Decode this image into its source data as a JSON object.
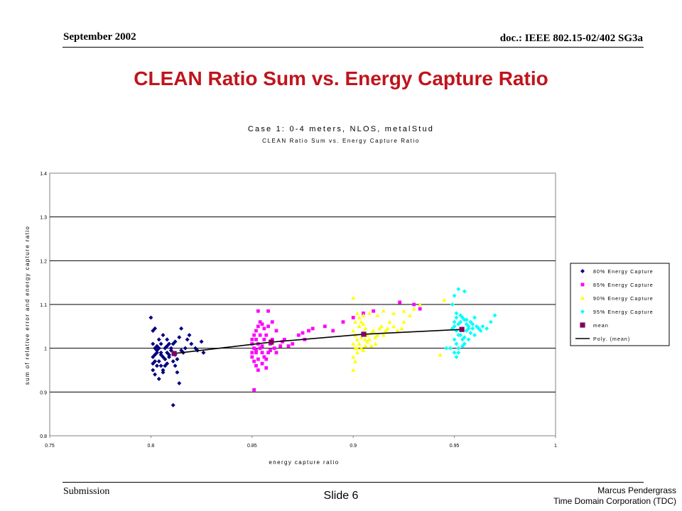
{
  "header": {
    "date": "September 2002",
    "doc": "doc.: IEEE 802.15-02/402 SG3a"
  },
  "slide": {
    "title": "CLEAN Ratio Sum vs. Energy Capture Ratio"
  },
  "footer": {
    "left": "Submission",
    "center": "Slide 6",
    "author": "Marcus Pendergrass",
    "org": "Time Domain Corporation (TDC)"
  },
  "chart_data": {
    "type": "scatter",
    "title": "Case 1: 0-4 meters, NLOS, metalStud",
    "subtitle": "CLEAN Ratio Sum vs. Energy Capture Ratio",
    "xlabel": "energy capture ratio",
    "ylabel": "sum of relative error and energy capture ratio",
    "xlim": [
      0.75,
      1
    ],
    "ylim": [
      0.8,
      1.4
    ],
    "x_ticks": [
      "0.75",
      "0.8",
      "0.85",
      "0.9",
      "0.95",
      "1"
    ],
    "y_ticks": [
      "0.8",
      "0.9",
      "1",
      "1.1",
      "1.2",
      "1.3",
      "1.4"
    ],
    "grid": "horizontal",
    "legend": "right",
    "series": [
      {
        "name": "80% Energy Capture",
        "marker": "diamond",
        "color": "#000080",
        "points": [
          [
            0.8,
            1.07
          ],
          [
            0.801,
            1.04
          ],
          [
            0.802,
            1.045
          ],
          [
            0.801,
            1.01
          ],
          [
            0.802,
            1.0
          ],
          [
            0.803,
            0.99
          ],
          [
            0.801,
            0.98
          ],
          [
            0.802,
            0.97
          ],
          [
            0.803,
            0.96
          ],
          [
            0.801,
            0.95
          ],
          [
            0.802,
            0.94
          ],
          [
            0.804,
            1.0
          ],
          [
            0.805,
            0.99
          ],
          [
            0.806,
            0.98
          ],
          [
            0.804,
            0.97
          ],
          [
            0.805,
            0.96
          ],
          [
            0.806,
            0.95
          ],
          [
            0.807,
            0.975
          ],
          [
            0.808,
            0.99
          ],
          [
            0.809,
            0.985
          ],
          [
            0.81,
            1.0
          ],
          [
            0.811,
            0.97
          ],
          [
            0.812,
            0.96
          ],
          [
            0.813,
            0.975
          ],
          [
            0.804,
            1.02
          ],
          [
            0.806,
            1.03
          ],
          [
            0.808,
            1.02
          ],
          [
            0.809,
            1.01
          ],
          [
            0.805,
            1.01
          ],
          [
            0.807,
            1.0
          ],
          [
            0.808,
            0.965
          ],
          [
            0.806,
            0.945
          ],
          [
            0.804,
            0.93
          ],
          [
            0.805,
            0.985
          ],
          [
            0.803,
            0.995
          ],
          [
            0.807,
            0.96
          ],
          [
            0.811,
            1.01
          ],
          [
            0.812,
            1.015
          ],
          [
            0.815,
            0.995
          ],
          [
            0.816,
            0.99
          ],
          [
            0.817,
            1.0
          ],
          [
            0.818,
            1.02
          ],
          [
            0.819,
            1.03
          ],
          [
            0.82,
            1.01
          ],
          [
            0.822,
            1.0
          ],
          [
            0.823,
            0.995
          ],
          [
            0.825,
            1.015
          ],
          [
            0.826,
            0.99
          ],
          [
            0.813,
            0.945
          ],
          [
            0.814,
            0.92
          ],
          [
            0.811,
            0.87
          ],
          [
            0.815,
            1.045
          ],
          [
            0.814,
            1.025
          ],
          [
            0.812,
            0.985
          ],
          [
            0.809,
            0.98
          ],
          [
            0.81,
            0.995
          ],
          [
            0.808,
            1.005
          ],
          [
            0.802,
            0.985
          ],
          [
            0.801,
            0.965
          ],
          [
            0.803,
            1.005
          ]
        ]
      },
      {
        "name": "85% Energy Capture",
        "marker": "square",
        "color": "#ff00ff",
        "points": [
          [
            0.85,
            1.01
          ],
          [
            0.851,
            1.0
          ],
          [
            0.852,
            0.99
          ],
          [
            0.85,
            0.98
          ],
          [
            0.851,
            0.97
          ],
          [
            0.852,
            0.96
          ],
          [
            0.85,
            1.02
          ],
          [
            0.851,
            1.03
          ],
          [
            0.852,
            1.04
          ],
          [
            0.853,
            1.05
          ],
          [
            0.854,
            1.06
          ],
          [
            0.855,
            1.055
          ],
          [
            0.856,
            1.045
          ],
          [
            0.857,
            1.03
          ],
          [
            0.853,
            1.01
          ],
          [
            0.854,
            1.0
          ],
          [
            0.855,
            0.99
          ],
          [
            0.856,
            0.98
          ],
          [
            0.857,
            0.975
          ],
          [
            0.858,
            0.99
          ],
          [
            0.859,
            1.01
          ],
          [
            0.86,
            1.02
          ],
          [
            0.861,
            1.0
          ],
          [
            0.862,
            0.99
          ],
          [
            0.864,
            1.005
          ],
          [
            0.865,
            1.015
          ],
          [
            0.853,
            1.085
          ],
          [
            0.858,
            1.085
          ],
          [
            0.851,
            0.905
          ],
          [
            0.853,
            0.95
          ],
          [
            0.855,
            0.965
          ],
          [
            0.857,
            0.955
          ],
          [
            0.852,
            1.02
          ],
          [
            0.854,
            1.03
          ],
          [
            0.856,
            1.02
          ],
          [
            0.858,
            1.05
          ],
          [
            0.86,
            1.06
          ],
          [
            0.866,
            1.02
          ],
          [
            0.868,
            1.005
          ],
          [
            0.87,
            1.01
          ],
          [
            0.873,
            1.03
          ],
          [
            0.875,
            1.035
          ],
          [
            0.876,
            1.02
          ],
          [
            0.878,
            1.04
          ],
          [
            0.88,
            1.045
          ],
          [
            0.886,
            1.05
          ],
          [
            0.89,
            1.04
          ],
          [
            0.895,
            1.06
          ],
          [
            0.9,
            1.07
          ],
          [
            0.905,
            1.08
          ],
          [
            0.91,
            1.085
          ],
          [
            0.923,
            1.105
          ],
          [
            0.933,
            1.09
          ],
          [
            0.93,
            1.1
          ],
          [
            0.862,
            1.04
          ],
          [
            0.852,
            0.995
          ],
          [
            0.853,
            0.975
          ],
          [
            0.855,
            1.005
          ],
          [
            0.85,
            0.99
          ],
          [
            0.859,
            0.995
          ]
        ]
      },
      {
        "name": "90% Energy Capture",
        "marker": "triangle",
        "color": "#ffff00",
        "points": [
          [
            0.9,
            1.04
          ],
          [
            0.901,
            1.03
          ],
          [
            0.902,
            1.02
          ],
          [
            0.9,
            1.01
          ],
          [
            0.901,
            1.0
          ],
          [
            0.902,
            0.99
          ],
          [
            0.9,
            0.98
          ],
          [
            0.901,
            0.97
          ],
          [
            0.9,
            0.95
          ],
          [
            0.903,
            1.05
          ],
          [
            0.904,
            1.06
          ],
          [
            0.905,
            1.055
          ],
          [
            0.906,
            1.045
          ],
          [
            0.907,
            1.03
          ],
          [
            0.903,
            1.01
          ],
          [
            0.904,
            1.0
          ],
          [
            0.905,
            0.995
          ],
          [
            0.906,
            1.005
          ],
          [
            0.907,
            1.015
          ],
          [
            0.908,
            1.02
          ],
          [
            0.909,
            1.035
          ],
          [
            0.91,
            1.04
          ],
          [
            0.911,
            1.025
          ],
          [
            0.912,
            1.03
          ],
          [
            0.913,
            1.045
          ],
          [
            0.914,
            1.05
          ],
          [
            0.915,
            1.03
          ],
          [
            0.916,
            1.04
          ],
          [
            0.918,
            1.06
          ],
          [
            0.92,
            1.05
          ],
          [
            0.922,
            1.04
          ],
          [
            0.924,
            1.045
          ],
          [
            0.925,
            1.06
          ],
          [
            0.928,
            1.075
          ],
          [
            0.93,
            1.09
          ],
          [
            0.933,
            1.1
          ],
          [
            0.9,
            1.115
          ],
          [
            0.902,
            1.08
          ],
          [
            0.901,
            1.06
          ],
          [
            0.903,
            1.07
          ],
          [
            0.905,
            1.075
          ],
          [
            0.908,
            1.08
          ],
          [
            0.912,
            1.075
          ],
          [
            0.915,
            1.085
          ],
          [
            0.92,
            1.08
          ],
          [
            0.925,
            1.085
          ],
          [
            0.943,
            0.985
          ],
          [
            0.945,
            1.11
          ],
          [
            0.911,
            1.01
          ],
          [
            0.906,
            1.02
          ],
          [
            0.904,
            1.025
          ],
          [
            0.909,
            1.005
          ],
          [
            0.902,
            1.0
          ],
          [
            0.917,
            1.045
          ]
        ]
      },
      {
        "name": "95% Energy Capture",
        "marker": "diamond",
        "color": "#00ffff",
        "points": [
          [
            0.95,
            1.05
          ],
          [
            0.951,
            1.04
          ],
          [
            0.952,
            1.03
          ],
          [
            0.95,
            1.02
          ],
          [
            0.951,
            1.01
          ],
          [
            0.952,
            1.0
          ],
          [
            0.95,
            0.99
          ],
          [
            0.951,
            0.98
          ],
          [
            0.953,
            1.06
          ],
          [
            0.954,
            1.07
          ],
          [
            0.955,
            1.065
          ],
          [
            0.956,
            1.055
          ],
          [
            0.957,
            1.045
          ],
          [
            0.953,
            1.03
          ],
          [
            0.954,
            1.02
          ],
          [
            0.955,
            1.025
          ],
          [
            0.956,
            1.04
          ],
          [
            0.957,
            1.05
          ],
          [
            0.958,
            1.06
          ],
          [
            0.959,
            1.055
          ],
          [
            0.96,
            1.07
          ],
          [
            0.961,
            1.05
          ],
          [
            0.962,
            1.045
          ],
          [
            0.963,
            1.04
          ],
          [
            0.964,
            1.05
          ],
          [
            0.966,
            1.045
          ],
          [
            0.968,
            1.06
          ],
          [
            0.97,
            1.075
          ],
          [
            0.95,
            1.12
          ],
          [
            0.952,
            1.135
          ],
          [
            0.955,
            1.13
          ],
          [
            0.949,
            1.1
          ],
          [
            0.951,
            1.08
          ],
          [
            0.953,
            1.075
          ],
          [
            0.948,
            1.0
          ],
          [
            0.946,
            1.0
          ],
          [
            0.955,
            1.01
          ],
          [
            0.957,
            1.02
          ],
          [
            0.96,
            1.03
          ],
          [
            0.952,
            0.99
          ],
          [
            0.954,
            1.005
          ],
          [
            0.958,
            1.035
          ],
          [
            0.95,
            1.06
          ],
          [
            0.951,
            1.07
          ],
          [
            0.949,
            1.045
          ],
          [
            0.952,
            1.055
          ],
          [
            0.956,
            1.065
          ],
          [
            0.959,
            1.045
          ]
        ]
      },
      {
        "name": "mean",
        "marker": "square",
        "color": "#800060",
        "points": [
          [
            0.8115,
            0.988
          ],
          [
            0.8595,
            1.014
          ],
          [
            0.9052,
            1.032
          ],
          [
            0.9537,
            1.043
          ]
        ]
      }
    ],
    "trendline": {
      "name": "Poly. (mean)",
      "color": "#000000",
      "points": [
        [
          0.8115,
          0.988
        ],
        [
          0.8595,
          1.014
        ],
        [
          0.9052,
          1.032
        ],
        [
          0.9537,
          1.043
        ]
      ]
    }
  }
}
